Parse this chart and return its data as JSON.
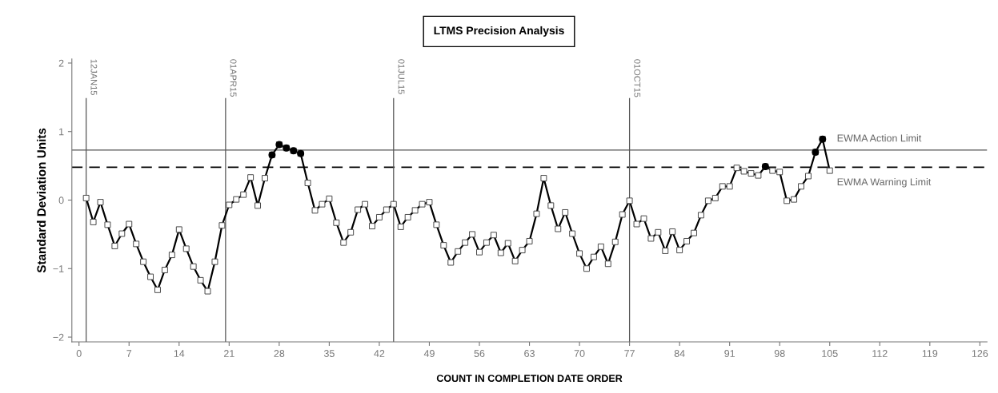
{
  "chart_data": {
    "type": "line",
    "title": "LTMS Precision Analysis",
    "xlabel": "COUNT IN COMPLETION DATE ORDER",
    "ylabel": "Standard Deviation Units",
    "xlim": [
      -1,
      127
    ],
    "xticks": [
      0,
      7,
      14,
      21,
      28,
      35,
      42,
      49,
      56,
      63,
      70,
      77,
      84,
      91,
      98,
      105,
      112,
      119,
      126
    ],
    "ylim": [
      -2.07,
      2.06
    ],
    "yticks": [
      {
        "value": -2,
        "label": "−2"
      },
      {
        "value": -1,
        "label": "−1"
      },
      0,
      1,
      2
    ],
    "grid": false,
    "legend": false,
    "series": [
      {
        "color": "#000000",
        "marker": "square",
        "x": [
          1,
          2,
          3,
          4,
          5,
          6,
          7,
          8,
          9,
          10,
          11,
          12,
          13,
          14,
          15,
          16,
          17,
          18,
          19,
          20,
          21,
          22,
          23,
          24,
          25,
          26,
          27,
          28,
          29,
          30,
          31,
          32,
          33,
          34,
          35,
          36,
          37,
          38,
          39,
          40,
          41,
          42,
          43,
          44,
          45,
          46,
          47,
          48,
          49,
          50,
          51,
          52,
          53,
          54,
          55,
          56,
          57,
          58,
          59,
          60,
          61,
          62,
          63,
          64,
          65,
          66,
          67,
          68,
          69,
          70,
          71,
          72,
          73,
          74,
          75,
          76,
          77,
          78,
          79,
          80,
          81,
          82,
          83,
          84,
          85,
          86,
          87,
          88,
          89,
          90,
          91,
          92,
          93,
          94,
          95,
          96,
          97,
          98,
          99,
          100,
          101,
          102,
          103,
          104,
          105
        ],
        "values": [
          0.03,
          -0.32,
          -0.03,
          -0.36,
          -0.67,
          -0.49,
          -0.35,
          -0.64,
          -0.9,
          -1.12,
          -1.31,
          -1.02,
          -0.8,
          -0.43,
          -0.71,
          -0.97,
          -1.17,
          -1.33,
          -0.9,
          -0.37,
          -0.07,
          0.01,
          0.08,
          0.33,
          -0.08,
          0.32,
          0.66,
          0.81,
          0.76,
          0.72,
          0.68,
          0.25,
          -0.15,
          -0.06,
          0.02,
          -0.33,
          -0.62,
          -0.47,
          -0.14,
          -0.06,
          -0.38,
          -0.25,
          -0.14,
          -0.06,
          -0.39,
          -0.25,
          -0.15,
          -0.06,
          -0.03,
          -0.36,
          -0.66,
          -0.91,
          -0.75,
          -0.62,
          -0.5,
          -0.76,
          -0.62,
          -0.51,
          -0.77,
          -0.63,
          -0.89,
          -0.73,
          -0.6,
          -0.2,
          0.32,
          -0.08,
          -0.42,
          -0.18,
          -0.49,
          -0.78,
          -1.0,
          -0.83,
          -0.68,
          -0.93,
          -0.61,
          -0.21,
          -0.01,
          -0.35,
          -0.27,
          -0.56,
          -0.47,
          -0.74,
          -0.46,
          -0.73,
          -0.6,
          -0.48,
          -0.22,
          -0.01,
          0.03,
          0.2,
          0.2,
          0.47,
          0.42,
          0.39,
          0.36,
          0.49,
          0.43,
          0.41,
          -0.01,
          0.01,
          0.2,
          0.35,
          0.7,
          0.89,
          0.43
        ]
      },
      {
        "type": "scatter",
        "color": "#000000",
        "marker": "circle",
        "x": [
          27,
          28,
          29,
          30,
          31,
          96,
          103,
          104
        ],
        "values": [
          0.66,
          0.81,
          0.76,
          0.72,
          0.68,
          0.49,
          0.7,
          0.89
        ]
      }
    ],
    "ref_lines": [
      {
        "axis": "y",
        "value": 0.73,
        "label": "EWMA Action Limit",
        "line_style": "solid",
        "color": "#555555"
      },
      {
        "axis": "y",
        "value": 0.48,
        "label": "EWMA Warning Limit",
        "line_style": "dashed",
        "color": "#000000"
      },
      {
        "axis": "x",
        "value": 1,
        "label": "12JAN15",
        "color": "#555555"
      },
      {
        "axis": "x",
        "value": 20.5,
        "label": "01APR15",
        "color": "#555555"
      },
      {
        "axis": "x",
        "value": 44,
        "label": "01JUL15",
        "color": "#555555"
      },
      {
        "axis": "x",
        "value": 77,
        "label": "01OCT15",
        "color": "#555555"
      }
    ]
  }
}
